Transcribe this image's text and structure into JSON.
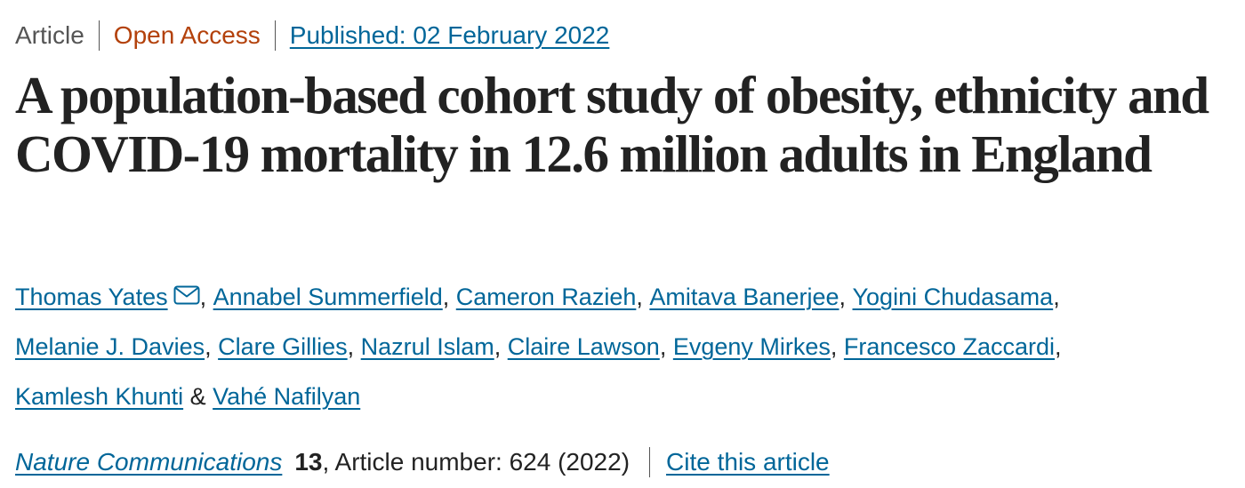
{
  "header": {
    "article_type": "Article",
    "access": "Open Access",
    "published": "Published: 02 February 2022"
  },
  "title": "A population-based cohort study of obesity, ethnicity and COVID-19 mortality in 12.6 million adults in England",
  "authors": [
    {
      "name": "Thomas Yates",
      "suffix": ", "
    },
    {
      "name": "Annabel Summerfield",
      "suffix": ", "
    },
    {
      "name": "Cameron Razieh",
      "suffix": ", "
    },
    {
      "name": "Amitava Banerjee",
      "suffix": ", "
    },
    {
      "name": "Yogini Chudasama",
      "suffix": ", "
    },
    {
      "name": "Melanie J. Davies",
      "suffix": ", "
    },
    {
      "name": "Clare Gillies",
      "suffix": ", "
    },
    {
      "name": "Nazrul Islam",
      "suffix": ", "
    },
    {
      "name": "Claire Lawson",
      "suffix": ", "
    },
    {
      "name": "Evgeny Mirkes",
      "suffix": ", "
    },
    {
      "name": "Francesco Zaccardi",
      "suffix": ", "
    },
    {
      "name": "Kamlesh Khunti",
      "suffix": " & "
    },
    {
      "name": "Vahé Nafilyan",
      "suffix": ""
    }
  ],
  "citation": {
    "journal": "Nature Communications",
    "volume": "13",
    "article_number": ", Article number: 624 (2022)",
    "cite_link": "Cite this article"
  },
  "icons": {
    "corresponding_author": "mail-icon"
  },
  "colors": {
    "link": "#006699",
    "open_access": "#b3410b",
    "text": "#222222",
    "muted": "#555555"
  }
}
